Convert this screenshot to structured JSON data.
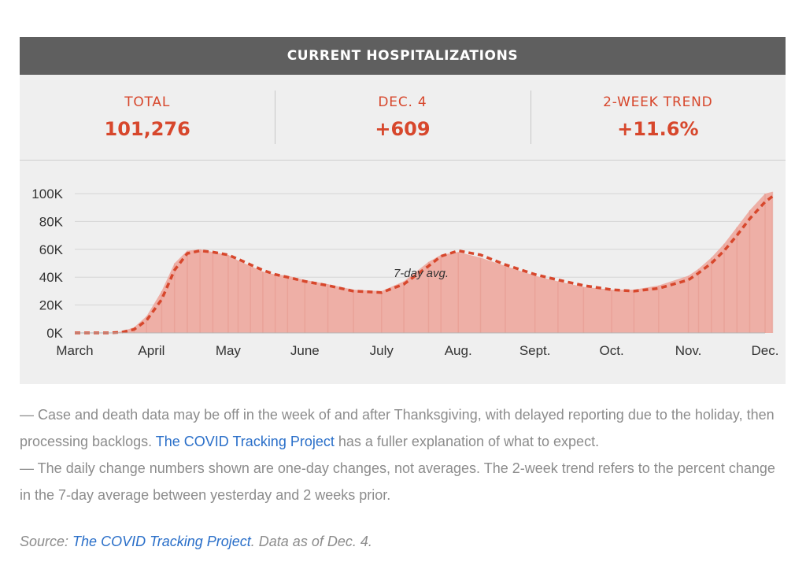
{
  "header": {
    "title": "CURRENT HOSPITALIZATIONS"
  },
  "stats": [
    {
      "label": "TOTAL",
      "value": "101,276"
    },
    {
      "label": "DEC. 4",
      "value": "+609"
    },
    {
      "label": "2-WEEK TREND",
      "value": "+11.6%"
    }
  ],
  "colors": {
    "accent": "#d7472c",
    "area_fill": "#eeafa6",
    "header_bg": "#5f5f5f",
    "panel_bg": "#efefef",
    "link": "#2a6fc9"
  },
  "chart_data": {
    "type": "area",
    "title": "CURRENT HOSPITALIZATIONS",
    "annotation": "7-day avg.",
    "x_ticks": [
      "March",
      "April",
      "May",
      "June",
      "July",
      "Aug.",
      "Sept.",
      "Oct.",
      "Nov.",
      "Dec."
    ],
    "y_ticks": [
      "0K",
      "20K",
      "40K",
      "60K",
      "80K",
      "100K"
    ],
    "ylim": [
      0,
      100000
    ],
    "grid": true,
    "series": [
      {
        "name": "Current hospitalizations",
        "x": [
          "Mar 1",
          "Mar 15",
          "Mar 20",
          "Mar 25",
          "Mar 30",
          "Apr 5",
          "Apr 10",
          "Apr 15",
          "Apr 20",
          "Apr 25",
          "May 1",
          "May 5",
          "May 10",
          "May 15",
          "May 20",
          "May 25",
          "Jun 1",
          "Jun 10",
          "Jun 20",
          "Jul 1",
          "Jul 10",
          "Jul 20",
          "Jul 25",
          "Aug 1",
          "Aug 10",
          "Aug 20",
          "Sep 1",
          "Sep 10",
          "Sep 20",
          "Oct 1",
          "Oct 10",
          "Oct 20",
          "Nov 1",
          "Nov 5",
          "Nov 10",
          "Nov 15",
          "Nov 20",
          "Nov 25",
          "Dec 1",
          "Dec 4"
        ],
        "values": [
          0,
          0,
          1000,
          4000,
          12000,
          30000,
          50000,
          59000,
          60000,
          58000,
          56000,
          52000,
          48000,
          44000,
          42000,
          41000,
          38000,
          35000,
          31000,
          30000,
          37000,
          51000,
          56000,
          58000,
          54000,
          48000,
          41000,
          37000,
          33000,
          31000,
          31000,
          34000,
          41000,
          46000,
          54000,
          64000,
          76000,
          88000,
          100000,
          101276
        ]
      },
      {
        "name": "7-day avg.",
        "x": [
          "Mar 1",
          "Mar 15",
          "Mar 20",
          "Mar 25",
          "Mar 30",
          "Apr 5",
          "Apr 10",
          "Apr 15",
          "Apr 20",
          "Apr 25",
          "May 1",
          "May 5",
          "May 10",
          "May 15",
          "May 20",
          "May 25",
          "Jun 1",
          "Jun 10",
          "Jun 20",
          "Jul 1",
          "Jul 10",
          "Jul 20",
          "Jul 25",
          "Aug 1",
          "Aug 10",
          "Aug 20",
          "Sep 1",
          "Sep 10",
          "Sep 20",
          "Oct 1",
          "Oct 10",
          "Oct 20",
          "Nov 1",
          "Nov 5",
          "Nov 10",
          "Nov 15",
          "Nov 20",
          "Nov 25",
          "Dec 1",
          "Dec 4"
        ],
        "values": [
          0,
          0,
          500,
          2500,
          9000,
          24000,
          45000,
          57000,
          59000,
          58000,
          56000,
          53000,
          49000,
          45000,
          42000,
          40000,
          37000,
          34000,
          30000,
          29000,
          35000,
          48000,
          55000,
          59000,
          56000,
          49000,
          42000,
          38000,
          34000,
          31000,
          30000,
          32000,
          38000,
          43000,
          50000,
          59000,
          70000,
          82000,
          94000,
          98000
        ]
      }
    ]
  },
  "notes": {
    "line1_prefix": "— Case and death data may be off in the week of and after Thanksgiving, with delayed reporting due to the holiday, then processing backlogs. ",
    "line1_link": "The COVID Tracking Project",
    "line1_suffix": " has a fuller explanation of what to expect.",
    "line2": "— The daily change numbers shown are one-day changes, not averages. The 2-week trend refers to the percent change in the 7-day average between yesterday and 2 weeks prior."
  },
  "source": {
    "prefix": "Source: ",
    "link": "The COVID Tracking Project",
    "suffix": ". Data as of Dec. 4."
  }
}
